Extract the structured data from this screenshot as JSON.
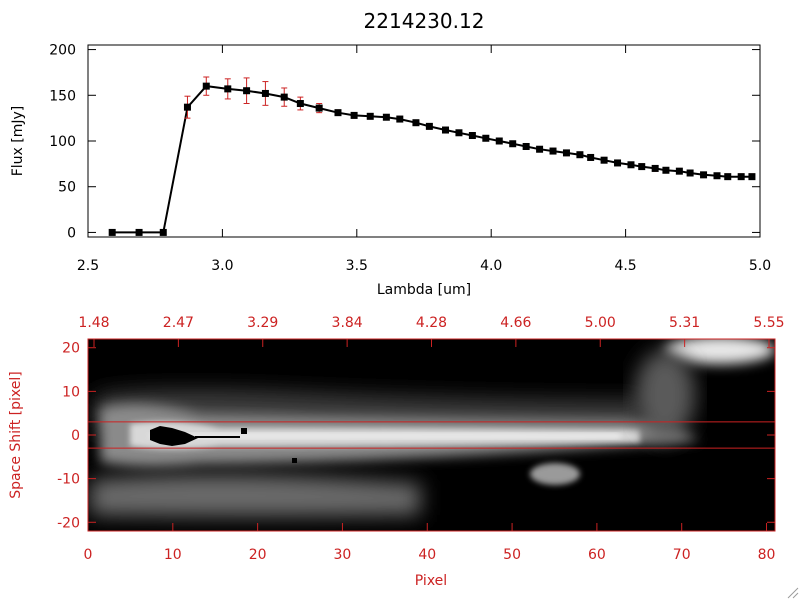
{
  "chart_data": [
    {
      "type": "line",
      "title": "2214230.12",
      "xlabel": "Lambda [um]",
      "ylabel": "Flux [mJy]",
      "xlim": [
        2.5,
        5.0
      ],
      "ylim": [
        -5,
        205
      ],
      "x_ticks": [
        "2.5",
        "3.0",
        "3.5",
        "4.0",
        "4.5",
        "5.0"
      ],
      "y_ticks": [
        "0",
        "50",
        "100",
        "150",
        "200"
      ],
      "grid": false,
      "colors": {
        "line": "#000000",
        "marker": "#000000",
        "error_bar": "#cc2222"
      },
      "series": [
        {
          "x": [
            2.59,
            2.69,
            2.78,
            2.87,
            2.94,
            3.02,
            3.09,
            3.16,
            3.23,
            3.29,
            3.36,
            3.43,
            3.49,
            3.55,
            3.61,
            3.66,
            3.72,
            3.77,
            3.83,
            3.88,
            3.93,
            3.98,
            4.03,
            4.08,
            4.13,
            4.18,
            4.23,
            4.28,
            4.33,
            4.37,
            4.42,
            4.47,
            4.52,
            4.56,
            4.61,
            4.65,
            4.7,
            4.74,
            4.79,
            4.84,
            4.88,
            4.93,
            4.97
          ],
          "y": [
            0,
            0,
            0,
            137,
            160,
            157,
            155,
            152,
            148,
            141,
            136,
            131,
            128,
            127,
            126,
            124,
            120,
            116,
            112,
            109,
            106,
            103,
            100,
            97,
            94,
            91,
            89,
            87,
            85,
            82,
            79,
            76,
            74,
            72,
            70,
            68,
            67,
            65,
            63,
            62,
            61,
            61,
            61
          ],
          "yerr": [
            0,
            0,
            0,
            12,
            10,
            11,
            14,
            13,
            10,
            7,
            5,
            3,
            3,
            3,
            3,
            3,
            3,
            3,
            3,
            3,
            3,
            3,
            3,
            3,
            3,
            3,
            3,
            3,
            3,
            3,
            3,
            3,
            3,
            3,
            3,
            3,
            3,
            3,
            3,
            3,
            3,
            3,
            3
          ]
        }
      ]
    },
    {
      "type": "heatmap",
      "xlabel": "Pixel",
      "ylabel": "Space Shift [pixel]",
      "xlim": [
        0,
        81
      ],
      "ylim": [
        -22,
        22
      ],
      "x_ticks": [
        "0",
        "10",
        "20",
        "30",
        "40",
        "50",
        "60",
        "70",
        "80"
      ],
      "y_ticks": [
        "-20",
        "-10",
        "0",
        "10",
        "20"
      ],
      "top_ticks": [
        "1.48",
        "2.47",
        "3.29",
        "3.84",
        "4.28",
        "4.66",
        "5.00",
        "5.31",
        "5.55"
      ],
      "reference_lines_y": [
        3,
        -3
      ],
      "colormap": "grayscale",
      "colors": {
        "axis": "#cc2222",
        "reference_line": "#cc2222"
      }
    }
  ]
}
